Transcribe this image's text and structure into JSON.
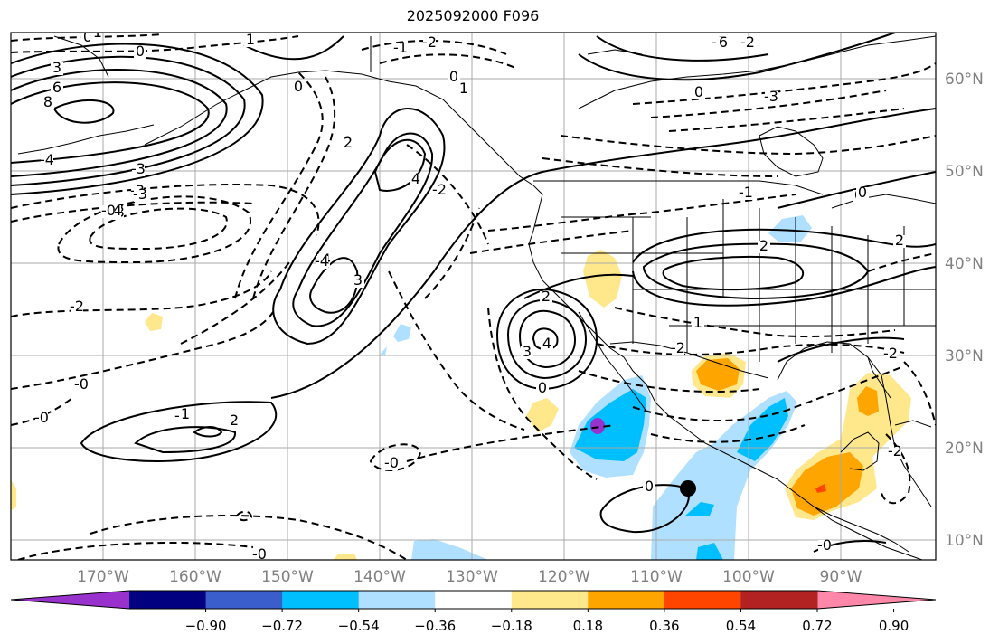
{
  "title": "2025092000 F096",
  "map": {
    "lat_labels": [
      "60°N",
      "50°N",
      "40°N",
      "30°N",
      "20°N",
      "10°N"
    ],
    "lon_labels": [
      "170°W",
      "160°W",
      "150°W",
      "140°W",
      "130°W",
      "120°W",
      "110°W",
      "100°W",
      "90°W"
    ],
    "contour_labels": [
      "0",
      "1",
      "-2",
      "0",
      "3",
      "6",
      "8",
      "-4",
      "-3",
      "0",
      "4",
      "2",
      "-3",
      "-3",
      "-1",
      "0",
      "-0",
      "-2",
      "2",
      "-4",
      "3",
      "-2",
      "-0",
      "0",
      "-1",
      "-2",
      "2",
      "-2",
      "0",
      "-1",
      "-2",
      "-1",
      "-0",
      "1",
      "4",
      "-0",
      "6",
      "-4",
      "-3",
      "-2",
      "0",
      "1",
      "2",
      "-3",
      "1",
      "0",
      "2",
      "-4",
      "3",
      "-2",
      "2",
      "-0",
      "0",
      "-0"
    ],
    "colors": {
      "coast": "#000000",
      "grid": "#aaaaaa",
      "label_gray": "#808080"
    },
    "cyclone_marker": "filled-black-circle"
  },
  "colorbar": {
    "ticks": [
      "−0.90",
      "−0.72",
      "−0.54",
      "−0.36",
      "−0.18",
      "0.18",
      "0.36",
      "0.54",
      "0.72",
      "0.90"
    ],
    "colors": [
      "#9932cc",
      "#000080",
      "#3a5fcd",
      "#00bfff",
      "#b0e0ff",
      "#ffffff",
      "#ffe88c",
      "#ffa500",
      "#ff4500",
      "#b22222",
      "#ff88aa"
    ]
  }
}
